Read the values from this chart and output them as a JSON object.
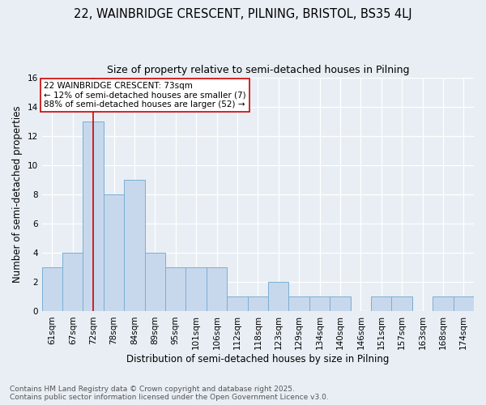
{
  "title": "22, WAINBRIDGE CRESCENT, PILNING, BRISTOL, BS35 4LJ",
  "subtitle": "Size of property relative to semi-detached houses in Pilning",
  "xlabel": "Distribution of semi-detached houses by size in Pilning",
  "ylabel": "Number of semi-detached properties",
  "categories": [
    "61sqm",
    "67sqm",
    "72sqm",
    "78sqm",
    "84sqm",
    "89sqm",
    "95sqm",
    "101sqm",
    "106sqm",
    "112sqm",
    "118sqm",
    "123sqm",
    "129sqm",
    "134sqm",
    "140sqm",
    "146sqm",
    "151sqm",
    "157sqm",
    "163sqm",
    "168sqm",
    "174sqm"
  ],
  "values": [
    3,
    4,
    13,
    8,
    9,
    4,
    3,
    3,
    3,
    1,
    1,
    2,
    1,
    1,
    1,
    0,
    1,
    1,
    0,
    1,
    1
  ],
  "bar_color": "#c8d8ec",
  "bar_edge_color": "#7aaed4",
  "subject_label": "22 WAINBRIDGE CRESCENT: 73sqm",
  "annotation_line1": "← 12% of semi-detached houses are smaller (7)",
  "annotation_line2": "88% of semi-detached houses are larger (52) →",
  "vline_color": "#cc0000",
  "vline_x_index": 2,
  "ylim": [
    0,
    16
  ],
  "yticks": [
    0,
    2,
    4,
    6,
    8,
    10,
    12,
    14,
    16
  ],
  "annotation_box_color": "white",
  "annotation_box_edge": "#cc0000",
  "footer_line1": "Contains HM Land Registry data © Crown copyright and database right 2025.",
  "footer_line2": "Contains public sector information licensed under the Open Government Licence v3.0.",
  "background_color": "#e8eef4",
  "title_fontsize": 10.5,
  "subtitle_fontsize": 9,
  "axis_label_fontsize": 8.5,
  "tick_fontsize": 7.5,
  "footer_fontsize": 6.5,
  "annotation_fontsize": 7.5
}
